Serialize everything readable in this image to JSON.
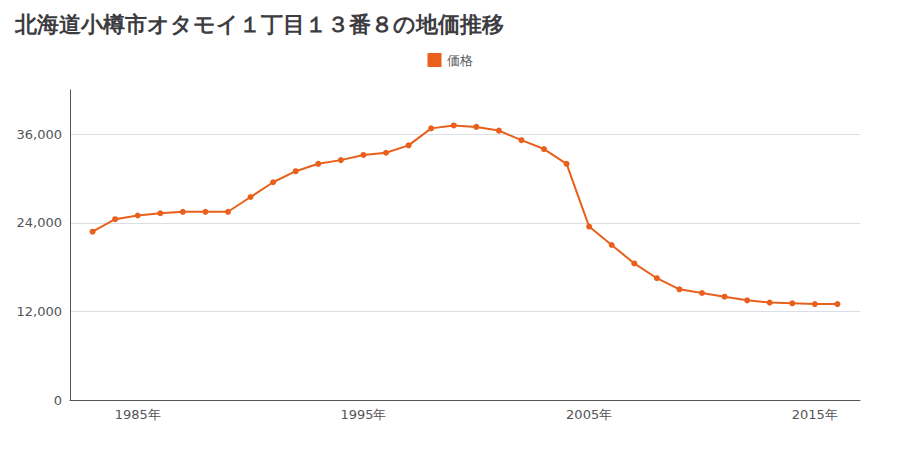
{
  "chart_data": {
    "type": "line",
    "title": "北海道小樽市オタモイ１丁目１３番８の地価推移",
    "x": [
      1983,
      1984,
      1985,
      1986,
      1987,
      1988,
      1989,
      1990,
      1991,
      1992,
      1993,
      1994,
      1995,
      1996,
      1997,
      1998,
      1999,
      2000,
      2001,
      2002,
      2003,
      2004,
      2005,
      2006,
      2007,
      2008,
      2009,
      2010,
      2011,
      2012,
      2013,
      2014,
      2015,
      2016
    ],
    "series": [
      {
        "name": "価格",
        "color": "#e8601c",
        "marker": "circle",
        "values": [
          22800,
          24500,
          25000,
          25300,
          25500,
          25500,
          25500,
          27500,
          29500,
          31000,
          32000,
          32500,
          33200,
          33500,
          34500,
          36800,
          37200,
          37000,
          36500,
          35200,
          34000,
          32000,
          23500,
          21000,
          18500,
          16500,
          15000,
          14500,
          14000,
          13500,
          13200,
          13100,
          13000,
          13000
        ]
      }
    ],
    "xlim": [
      1982,
      2017
    ],
    "xticks": [
      {
        "value": 1985,
        "label": "1985年"
      },
      {
        "value": 1995,
        "label": "1995年"
      },
      {
        "value": 2005,
        "label": "2005年"
      },
      {
        "value": 2015,
        "label": "2015年"
      }
    ],
    "ylim": [
      0,
      42000
    ],
    "yticks": [
      0,
      {
        "value": 12000,
        "label": "12,000"
      },
      {
        "value": 24000,
        "label": "24,000"
      },
      {
        "value": 36000,
        "label": "36,000"
      }
    ],
    "grid": true,
    "legend": "top"
  }
}
